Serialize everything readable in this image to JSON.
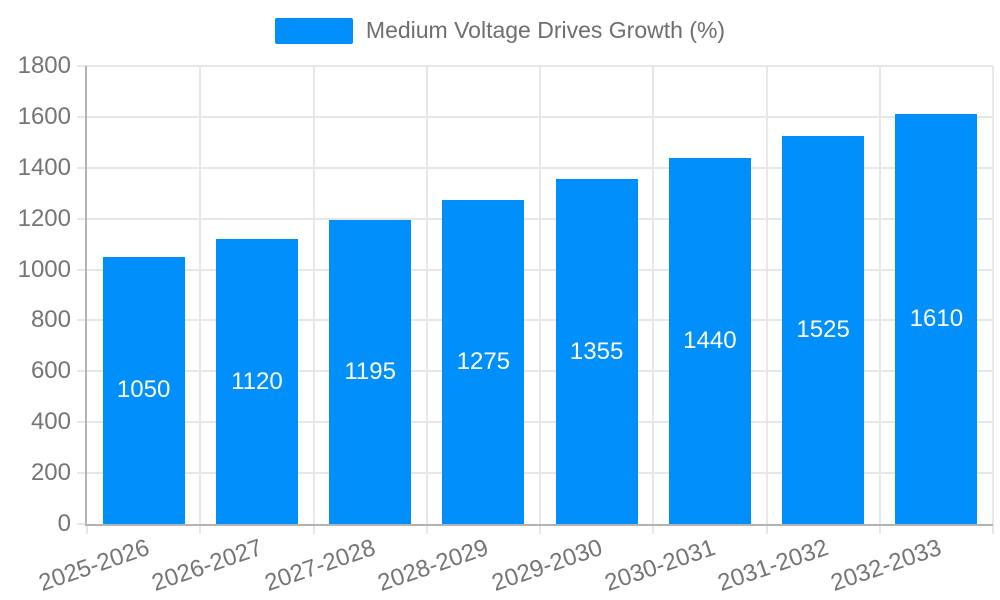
{
  "legend": {
    "label": "Medium Voltage Drives Growth (%)"
  },
  "chart_data": {
    "type": "bar",
    "title": "",
    "xlabel": "",
    "ylabel": "",
    "series_name": "Medium Voltage Drives Growth (%)",
    "categories": [
      "2025-2026",
      "2026-2027",
      "2027-2028",
      "2028-2029",
      "2029-2030",
      "2030-2031",
      "2031-2032",
      "2032-2033"
    ],
    "values": [
      1050,
      1120,
      1195,
      1275,
      1355,
      1440,
      1525,
      1610
    ],
    "value_labels_shown": true,
    "ylim": [
      0,
      1800
    ],
    "yticks": [
      0,
      200,
      400,
      600,
      800,
      1000,
      1200,
      1400,
      1600,
      1800
    ],
    "grid": true,
    "legend_position": "top",
    "x_label_rotation_deg": -19,
    "colors": {
      "bar": "#008FFB",
      "value_label": "#FFFFFF",
      "axis_text": "#757575",
      "legend_text": "#6E6E6E",
      "grid_line": "#E7E7E7",
      "axis_line": "#B3B3B3"
    }
  }
}
